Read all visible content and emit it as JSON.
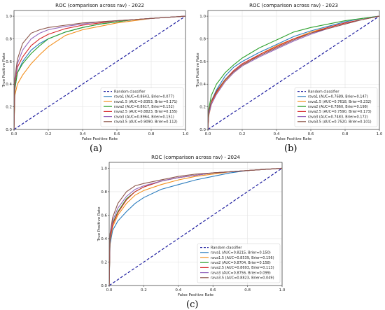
{
  "colors": {
    "baseline": "#1f1fa0",
    "series": [
      "#2a7bbd",
      "#f28e1c",
      "#2ca02c",
      "#d62728",
      "#9467bd",
      "#8c564b"
    ]
  },
  "captions": [
    "(a)",
    "(b)",
    "(c)"
  ],
  "chart_data": [
    {
      "type": "line",
      "title": "ROC (comparison across rav) - 2022",
      "xlabel": "False Positive Rate",
      "ylabel": "True Positive Rate",
      "xlim": [
        0,
        1
      ],
      "ylim": [
        0,
        1.05
      ],
      "xticks": [
        "0.0",
        "0.2",
        "0.4",
        "0.6",
        "0.8",
        "1.0"
      ],
      "yticks": [
        "0.0",
        "0.2",
        "0.4",
        "0.6",
        "0.8",
        "1.0"
      ],
      "grid": true,
      "legend_position": "bottom-right",
      "baseline": {
        "name": "Random classifier",
        "x": [
          0,
          1
        ],
        "y": [
          0,
          1
        ]
      },
      "series": [
        {
          "name": "rava1 (AUC=0.8643, Brier=0.077)",
          "x": [
            0,
            0.005,
            0.02,
            0.05,
            0.1,
            0.15,
            0.2,
            0.3,
            0.4,
            0.5,
            0.6,
            0.7,
            0.8,
            0.9,
            1
          ],
          "y": [
            0,
            0.35,
            0.5,
            0.6,
            0.7,
            0.76,
            0.8,
            0.86,
            0.9,
            0.93,
            0.95,
            0.97,
            0.98,
            0.99,
            1
          ]
        },
        {
          "name": "rava1.5 (AUC=0.8353, Brier=0.171)",
          "x": [
            0,
            0.005,
            0.02,
            0.05,
            0.1,
            0.15,
            0.2,
            0.3,
            0.4,
            0.5,
            0.6,
            0.7,
            0.8,
            0.9,
            1
          ],
          "y": [
            0,
            0.3,
            0.4,
            0.48,
            0.58,
            0.66,
            0.73,
            0.83,
            0.88,
            0.91,
            0.94,
            0.96,
            0.98,
            0.99,
            1
          ]
        },
        {
          "name": "rava2 (AUC=0.8617, Brier=0.152)",
          "x": [
            0,
            0.005,
            0.02,
            0.05,
            0.1,
            0.15,
            0.2,
            0.3,
            0.4,
            0.5,
            0.6,
            0.7,
            0.8,
            0.9,
            1
          ],
          "y": [
            0,
            0.36,
            0.5,
            0.58,
            0.67,
            0.74,
            0.8,
            0.86,
            0.9,
            0.93,
            0.95,
            0.97,
            0.98,
            0.99,
            1
          ]
        },
        {
          "name": "rava2.5 (AUC=0.8823, Brier=0.155)",
          "x": [
            0,
            0.005,
            0.02,
            0.05,
            0.1,
            0.15,
            0.2,
            0.3,
            0.4,
            0.5,
            0.6,
            0.7,
            0.8,
            0.9,
            1
          ],
          "y": [
            0,
            0.4,
            0.55,
            0.64,
            0.74,
            0.8,
            0.84,
            0.89,
            0.92,
            0.94,
            0.96,
            0.97,
            0.98,
            0.99,
            1
          ]
        },
        {
          "name": "rava3 (AUC=0.8964, Brier=0.151)",
          "x": [
            0,
            0.005,
            0.02,
            0.05,
            0.1,
            0.15,
            0.2,
            0.3,
            0.4,
            0.5,
            0.6,
            0.7,
            0.8,
            0.9,
            1
          ],
          "y": [
            0,
            0.42,
            0.58,
            0.7,
            0.8,
            0.85,
            0.88,
            0.91,
            0.93,
            0.95,
            0.96,
            0.97,
            0.98,
            0.99,
            1
          ]
        },
        {
          "name": "rava3.5 (AUC=0.9090, Brier=0.112)",
          "x": [
            0,
            0.005,
            0.02,
            0.05,
            0.1,
            0.15,
            0.2,
            0.3,
            0.4,
            0.5,
            0.6,
            0.7,
            0.8,
            0.9,
            1
          ],
          "y": [
            0,
            0.45,
            0.62,
            0.76,
            0.85,
            0.88,
            0.9,
            0.92,
            0.94,
            0.95,
            0.96,
            0.97,
            0.98,
            0.99,
            1
          ]
        }
      ]
    },
    {
      "type": "line",
      "title": "ROC (comparison across rav) - 2023",
      "xlabel": "False Positive Rate",
      "ylabel": "True Positive Rate",
      "xlim": [
        0,
        1
      ],
      "ylim": [
        0,
        1.05
      ],
      "xticks": [
        "0.0",
        "0.2",
        "0.4",
        "0.6",
        "0.8",
        "1.0"
      ],
      "yticks": [
        "0.0",
        "0.2",
        "0.4",
        "0.6",
        "0.8",
        "1.0"
      ],
      "grid": true,
      "legend_position": "bottom-right",
      "baseline": {
        "name": "Random classifier",
        "x": [
          0,
          1
        ],
        "y": [
          0,
          1
        ]
      },
      "series": [
        {
          "name": "rava1 (AUC=0.7689, Brier=0.147)",
          "x": [
            0,
            0.005,
            0.02,
            0.05,
            0.1,
            0.15,
            0.2,
            0.3,
            0.4,
            0.5,
            0.6,
            0.7,
            0.8,
            0.9,
            1
          ],
          "y": [
            0,
            0.15,
            0.25,
            0.35,
            0.47,
            0.55,
            0.6,
            0.68,
            0.75,
            0.82,
            0.87,
            0.91,
            0.95,
            0.98,
            1
          ]
        },
        {
          "name": "rava1.5 (AUC=0.7618, Brier=0.232)",
          "x": [
            0,
            0.005,
            0.02,
            0.05,
            0.1,
            0.15,
            0.2,
            0.3,
            0.4,
            0.5,
            0.6,
            0.7,
            0.8,
            0.9,
            1
          ],
          "y": [
            0,
            0.12,
            0.22,
            0.32,
            0.43,
            0.5,
            0.56,
            0.66,
            0.74,
            0.8,
            0.86,
            0.9,
            0.94,
            0.97,
            1
          ]
        },
        {
          "name": "rava2 (AUC=0.7860, Brier=0.198)",
          "x": [
            0,
            0.005,
            0.02,
            0.05,
            0.1,
            0.15,
            0.2,
            0.3,
            0.4,
            0.5,
            0.6,
            0.7,
            0.8,
            0.9,
            1
          ],
          "y": [
            0,
            0.18,
            0.3,
            0.4,
            0.5,
            0.57,
            0.63,
            0.72,
            0.79,
            0.86,
            0.9,
            0.93,
            0.96,
            0.98,
            1
          ]
        },
        {
          "name": "rava2.5 (AUC=0.7590, Brier=0.173)",
          "x": [
            0,
            0.005,
            0.02,
            0.05,
            0.1,
            0.15,
            0.2,
            0.3,
            0.4,
            0.5,
            0.6,
            0.7,
            0.8,
            0.9,
            1
          ],
          "y": [
            0,
            0.14,
            0.24,
            0.33,
            0.44,
            0.52,
            0.58,
            0.66,
            0.73,
            0.8,
            0.85,
            0.9,
            0.94,
            0.97,
            1
          ]
        },
        {
          "name": "rava3 (AUC=0.7483, Brier=0.172)",
          "x": [
            0,
            0.005,
            0.02,
            0.05,
            0.1,
            0.15,
            0.2,
            0.3,
            0.4,
            0.5,
            0.6,
            0.7,
            0.8,
            0.9,
            1
          ],
          "y": [
            0,
            0.13,
            0.22,
            0.31,
            0.42,
            0.5,
            0.56,
            0.64,
            0.71,
            0.78,
            0.84,
            0.89,
            0.93,
            0.97,
            1
          ]
        },
        {
          "name": "rava3.5 (AUC=0.7520, Brier=0.101)",
          "x": [
            0,
            0.005,
            0.02,
            0.05,
            0.1,
            0.15,
            0.2,
            0.3,
            0.4,
            0.5,
            0.6,
            0.7,
            0.8,
            0.9,
            1
          ],
          "y": [
            0,
            0.16,
            0.25,
            0.34,
            0.44,
            0.51,
            0.57,
            0.65,
            0.72,
            0.79,
            0.85,
            0.89,
            0.93,
            0.97,
            1
          ]
        }
      ]
    },
    {
      "type": "line",
      "title": "ROC (comparison across rav) - 2024",
      "xlabel": "False Positive Rate",
      "ylabel": "True Positive Rate",
      "xlim": [
        0,
        1
      ],
      "ylim": [
        0,
        1.05
      ],
      "xticks": [
        "0.0",
        "0.2",
        "0.4",
        "0.6",
        "0.8",
        "1.0"
      ],
      "yticks": [
        "0.0",
        "0.2",
        "0.4",
        "0.6",
        "0.8",
        "1.0"
      ],
      "grid": true,
      "legend_position": "bottom-right",
      "baseline": {
        "name": "Random classifier",
        "x": [
          0,
          1
        ],
        "y": [
          0,
          1
        ]
      },
      "series": [
        {
          "name": "rava1 (AUC=0.8215, Brier=0.150)",
          "x": [
            0,
            0.005,
            0.02,
            0.05,
            0.1,
            0.15,
            0.2,
            0.3,
            0.4,
            0.5,
            0.6,
            0.7,
            0.8,
            0.9,
            1
          ],
          "y": [
            0,
            0.35,
            0.47,
            0.55,
            0.63,
            0.7,
            0.75,
            0.82,
            0.86,
            0.9,
            0.93,
            0.96,
            0.98,
            0.99,
            1
          ]
        },
        {
          "name": "rava1.5 (AUC=0.8539, Brier=0.156)",
          "x": [
            0,
            0.005,
            0.02,
            0.05,
            0.1,
            0.15,
            0.2,
            0.3,
            0.4,
            0.5,
            0.6,
            0.7,
            0.8,
            0.9,
            1
          ],
          "y": [
            0,
            0.38,
            0.5,
            0.6,
            0.7,
            0.77,
            0.81,
            0.86,
            0.9,
            0.93,
            0.95,
            0.97,
            0.98,
            0.99,
            1
          ]
        },
        {
          "name": "rava2 (AUC=0.8704, Brier=0.158)",
          "x": [
            0,
            0.005,
            0.02,
            0.05,
            0.1,
            0.15,
            0.2,
            0.3,
            0.4,
            0.5,
            0.6,
            0.7,
            0.8,
            0.9,
            1
          ],
          "y": [
            0,
            0.4,
            0.53,
            0.63,
            0.74,
            0.8,
            0.84,
            0.89,
            0.92,
            0.94,
            0.96,
            0.97,
            0.98,
            0.99,
            1
          ]
        },
        {
          "name": "rava2.5 (AUC=0.8693, Brier=0.113)",
          "x": [
            0,
            0.005,
            0.02,
            0.05,
            0.1,
            0.15,
            0.2,
            0.3,
            0.4,
            0.5,
            0.6,
            0.7,
            0.8,
            0.9,
            1
          ],
          "y": [
            0,
            0.4,
            0.52,
            0.62,
            0.73,
            0.8,
            0.84,
            0.89,
            0.92,
            0.94,
            0.96,
            0.97,
            0.98,
            0.99,
            1
          ]
        },
        {
          "name": "rava3 (AUC=0.8756, Brier=0.099)",
          "x": [
            0,
            0.005,
            0.02,
            0.05,
            0.1,
            0.15,
            0.2,
            0.3,
            0.4,
            0.5,
            0.6,
            0.7,
            0.8,
            0.9,
            1
          ],
          "y": [
            0,
            0.42,
            0.55,
            0.66,
            0.76,
            0.82,
            0.85,
            0.89,
            0.92,
            0.94,
            0.96,
            0.97,
            0.98,
            0.99,
            1
          ]
        },
        {
          "name": "rava3.5 (AUC=0.8823, Brier=0.049)",
          "x": [
            0,
            0.005,
            0.02,
            0.05,
            0.1,
            0.15,
            0.2,
            0.3,
            0.4,
            0.5,
            0.6,
            0.7,
            0.8,
            0.9,
            1
          ],
          "y": [
            0,
            0.44,
            0.58,
            0.7,
            0.8,
            0.85,
            0.87,
            0.9,
            0.93,
            0.95,
            0.96,
            0.97,
            0.98,
            0.99,
            1
          ]
        }
      ]
    }
  ]
}
